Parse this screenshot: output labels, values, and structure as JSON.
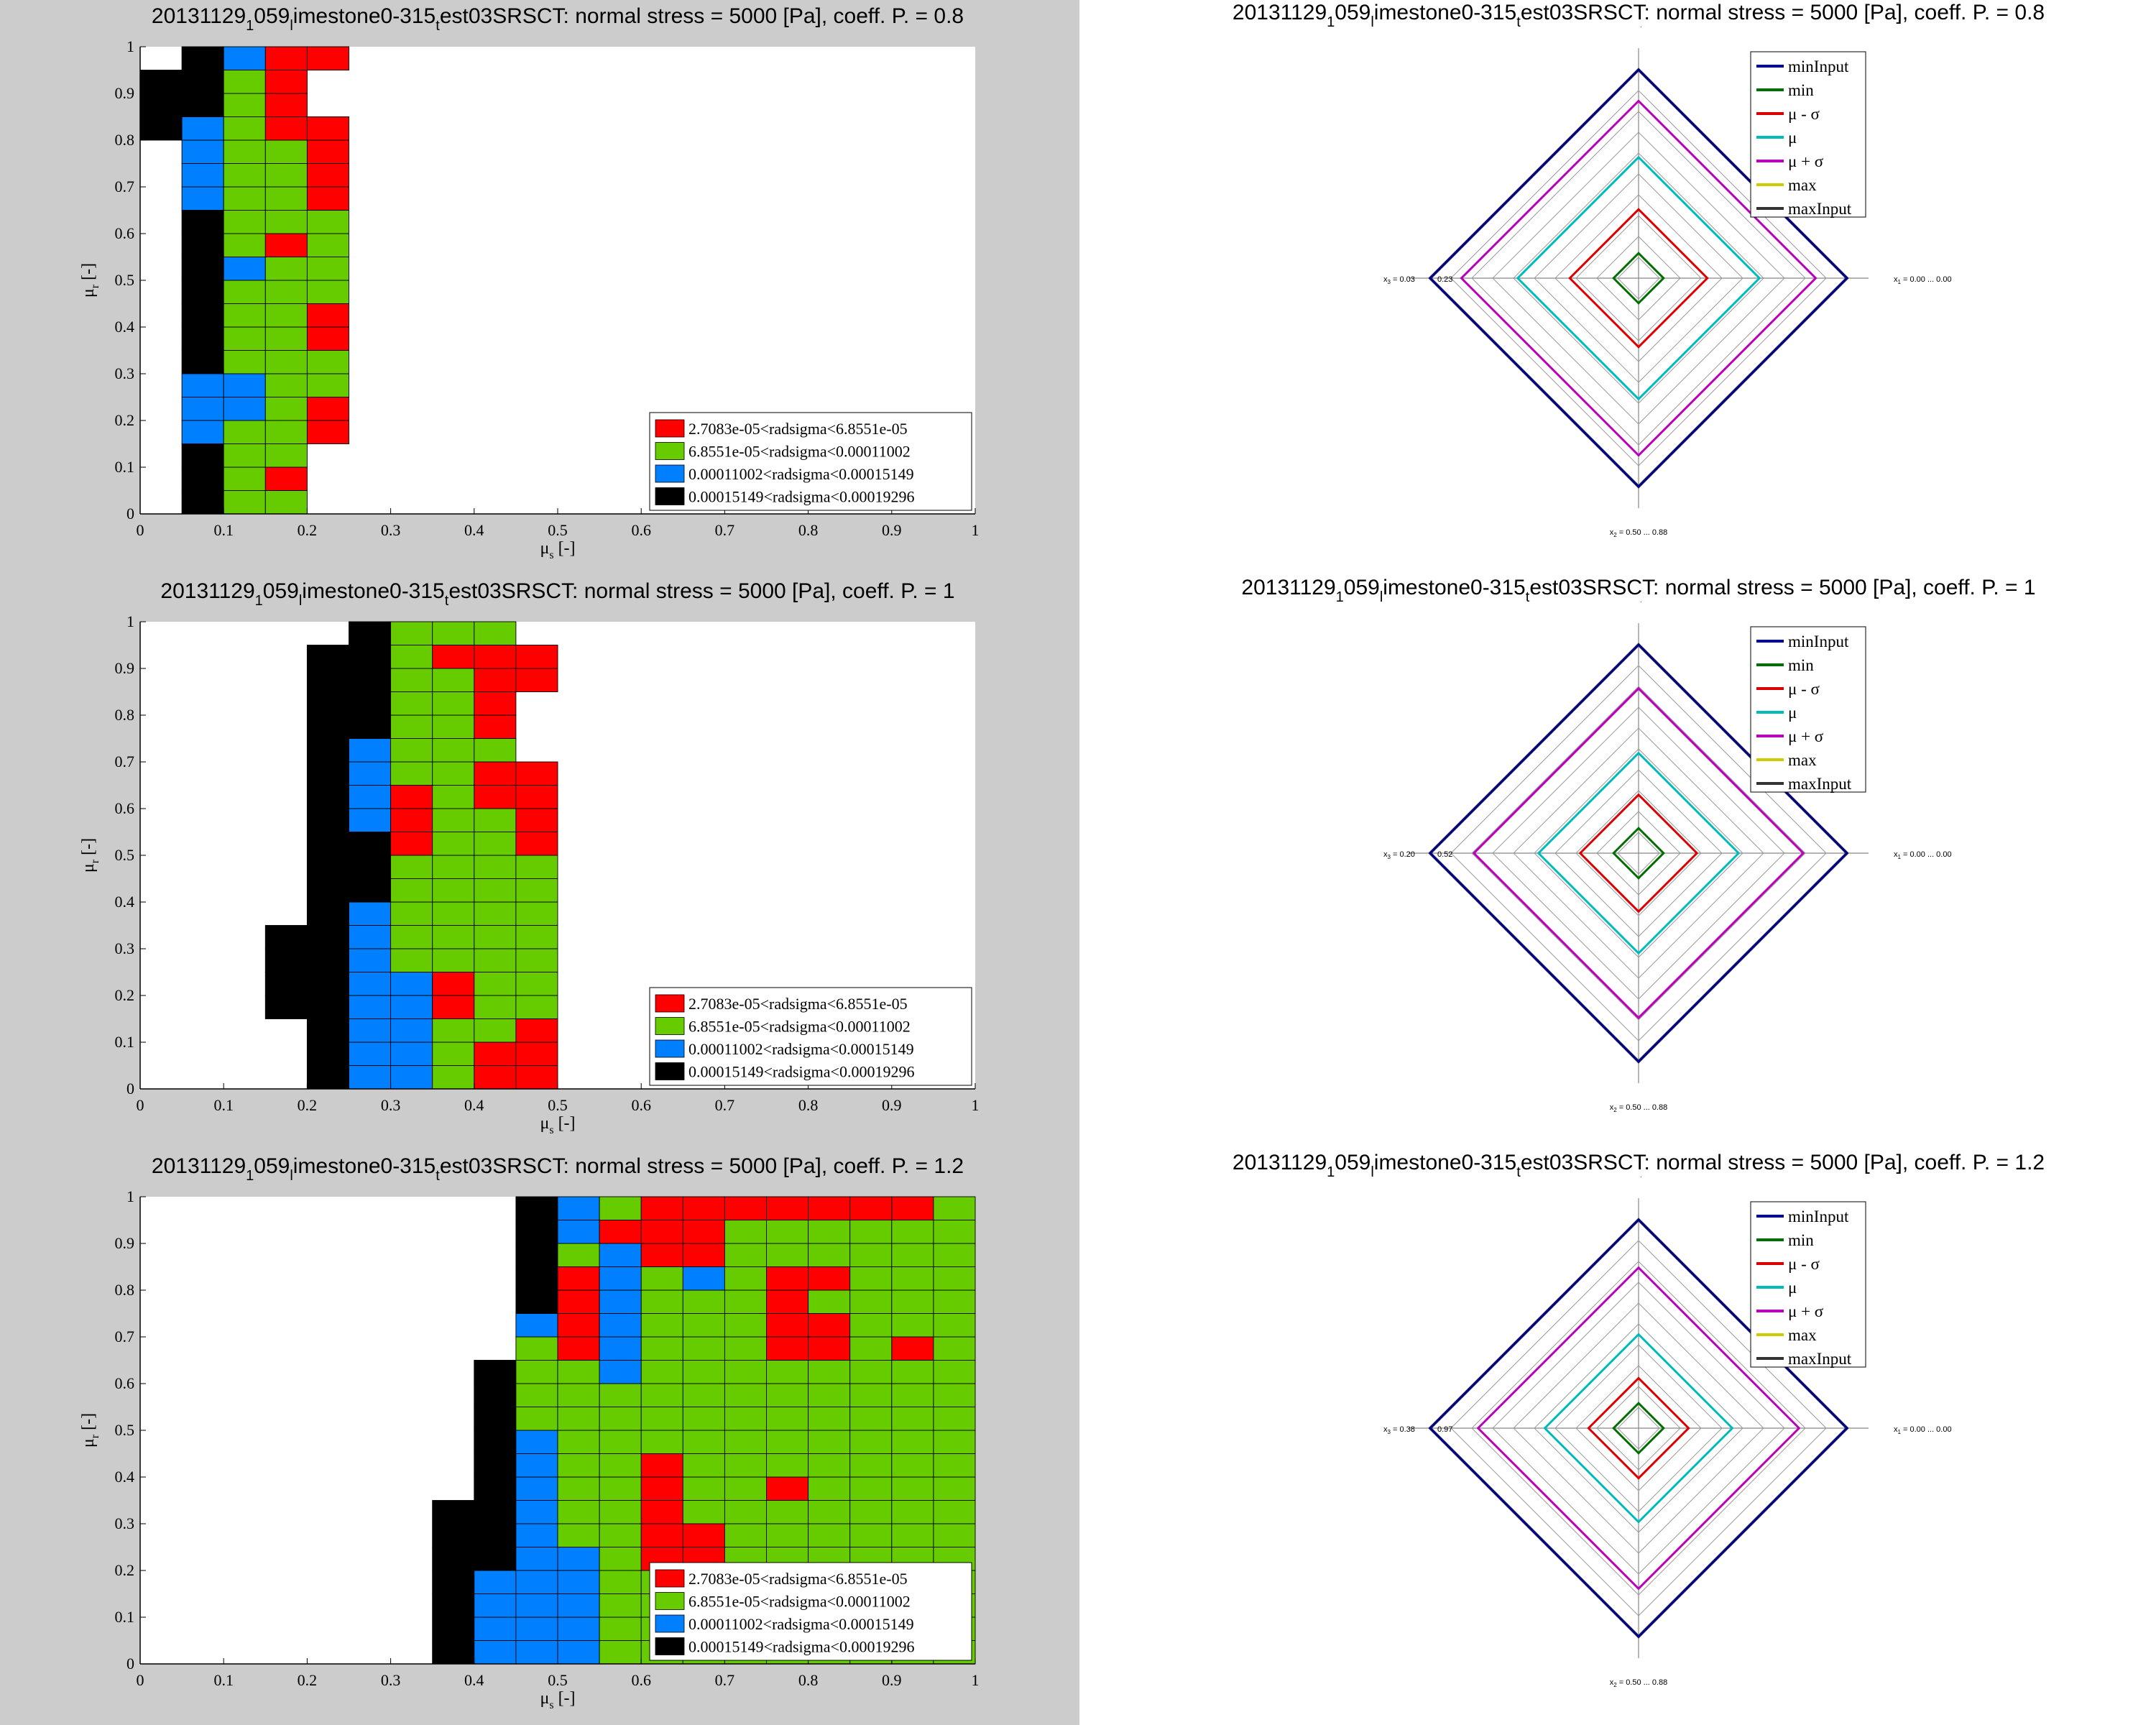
{
  "chart_data": {
    "legend_entries": [
      {
        "label": "2.7083e-05<radsigma<6.8551e-05",
        "color": "#ff0000"
      },
      {
        "label": "6.8551e-05<radsigma<0.00011002",
        "color": "#66cc00"
      },
      {
        "label": "0.00011002<radsigma<0.00015149",
        "color": "#0080ff"
      },
      {
        "label": "0.00015149<radsigma<0.00019296",
        "color": "#000000"
      }
    ],
    "heatmap_common": {
      "type": "heatmap",
      "xlabel": "μ",
      "xlabel_sub": "s",
      "xlabel_suffix": " [-]",
      "ylabel": "μ",
      "ylabel_sub": "r",
      "ylabel_suffix": " [-]",
      "xlim": [
        0,
        1
      ],
      "ylim": [
        0,
        1
      ],
      "cell_width": 0.05,
      "cell_height": 0.05,
      "x_ticks": [
        "0",
        "0.1",
        "0.2",
        "0.3",
        "0.4",
        "0.5",
        "0.6",
        "0.7",
        "0.8",
        "0.9",
        "1"
      ],
      "y_ticks": [
        "0",
        "0.1",
        "0.2",
        "0.3",
        "0.4",
        "0.5",
        "0.6",
        "0.7",
        "0.8",
        "0.9",
        "1"
      ],
      "legend_position": "bottom-right"
    },
    "heatmaps": [
      {
        "title_parts": [
          "20131129",
          "1",
          "059",
          "l",
          "imestone0-315",
          "t",
          "est03SRSCT: normal stress = 5000 [Pa], coeff. P. = 0.8"
        ],
        "columns": [
          {
            "x0": 0.0,
            "y0": 0.8,
            "y1": 0.95,
            "cells": "KKK"
          },
          {
            "x0": 0.05,
            "y0": 0.0,
            "y1": 1.0,
            "cells": "KKKBBBKKKKKKKBBBBKKK"
          },
          {
            "x0": 0.1,
            "y0": 0.0,
            "y1": 1.0,
            "cells": "GGGGBBGGGGBGGGGGGGGB"
          },
          {
            "x0": 0.15,
            "y0": 0.0,
            "y1": 1.0,
            "cells": "GRGGGGGGGGGRGGGGRRRR"
          },
          {
            "x0": 0.2,
            "y0": 0.15,
            "y1": 1.0,
            "cells": "RRGGRRGGGGRRRR  R"
          }
        ]
      },
      {
        "title_parts": [
          "20131129",
          "1",
          "059",
          "l",
          "imestone0-315",
          "t",
          "est03SRSCT: normal stress = 5000 [Pa], coeff. P. = 1"
        ],
        "columns": [
          {
            "x0": 0.15,
            "y0": 0.15,
            "y1": 0.35,
            "cells": "KKKK"
          },
          {
            "x0": 0.2,
            "y0": 0.0,
            "y1": 0.95,
            "cells": "KKKKKKKKKKKKKKKKKKK"
          },
          {
            "x0": 0.25,
            "y0": 0.0,
            "y1": 1.0,
            "cells": "BBBBBBBBKKKBBBBKKKKK"
          },
          {
            "x0": 0.3,
            "y0": 0.0,
            "y1": 1.0,
            "cells": "BBBBBGGGGGRRRGGGGGGG"
          },
          {
            "x0": 0.35,
            "y0": 0.0,
            "y1": 1.0,
            "cells": "GGGRRGGGGGGGGGGGGGRG"
          },
          {
            "x0": 0.4,
            "y0": 0.0,
            "y1": 1.0,
            "cells": "RRGGGGGGGGGGRRGRRRRG"
          },
          {
            "x0": 0.45,
            "y0": 0.0,
            "y1": 1.0,
            "cells": "RRRGGGGGGGRRRR   RR"
          }
        ]
      },
      {
        "title_parts": [
          "20131129",
          "1",
          "059",
          "l",
          "imestone0-315",
          "t",
          "est03SRSCT: normal stress = 5000 [Pa], coeff. P. = 1.2"
        ],
        "columns": [
          {
            "x0": 0.35,
            "y0": 0.0,
            "y1": 0.35,
            "cells": "KKKKKKK"
          },
          {
            "x0": 0.4,
            "y0": 0.0,
            "y1": 0.65,
            "cells": "BBBBKKKKKKKKK"
          },
          {
            "x0": 0.45,
            "y0": 0.0,
            "y1": 1.0,
            "cells": "BBBBBBBBBBGGGGBKKKKK"
          },
          {
            "x0": 0.5,
            "y0": 0.0,
            "y1": 1.0,
            "cells": "BBBBBGGGGGGGGRRRRGBB"
          },
          {
            "x0": 0.55,
            "y0": 0.0,
            "y1": 1.0,
            "cells": "GGGGGGGGGGGGBBBBBBRG"
          },
          {
            "x0": 0.6,
            "y0": 0.0,
            "y1": 1.0,
            "cells": "GGGGRRRRRGGGGGGGGRRR"
          },
          {
            "x0": 0.65,
            "y0": 0.0,
            "y1": 1.0,
            "cells": "GGGGRRGGGGGGGGGGBRRR"
          },
          {
            "x0": 0.7,
            "y0": 0.0,
            "y1": 1.0,
            "cells": "GGGGGGGGGGGGGGGGGGGR"
          },
          {
            "x0": 0.75,
            "y0": 0.0,
            "y1": 1.0,
            "cells": "GGGGGGGRGGGGGRRRRGGR"
          },
          {
            "x0": 0.8,
            "y0": 0.0,
            "y1": 1.0,
            "cells": "GGGGGGGGGGGGGRRGRGGR"
          },
          {
            "x0": 0.85,
            "y0": 0.0,
            "y1": 1.0,
            "cells": "GGGGGGGGGGGGGGGGGGGR"
          },
          {
            "x0": 0.9,
            "y0": 0.0,
            "y1": 1.0,
            "cells": "GGGGGGGGGGGGGRGGGGGR"
          },
          {
            "x0": 0.95,
            "y0": 0.0,
            "y1": 1.0,
            "cells": "GGGGGGGGGGGGGGGGGGGG"
          }
        ]
      }
    ],
    "radar_common": {
      "type": "radar",
      "axes": [
        {
          "label": "x",
          "sub": "1",
          "range_text": " = 0.00 ...  0.00"
        },
        {
          "label": "x",
          "sub": "2",
          "range_text": " = 0.50 ...  0.88"
        },
        {
          "label": "x",
          "sub": "3"
        },
        {
          "label": "x",
          "sub": "4"
        }
      ],
      "legend_position": "top-right",
      "series_names": [
        "minInput",
        "min",
        "μ - σ",
        "μ",
        "μ + σ",
        "max",
        "maxInput"
      ],
      "series_colors": [
        "#00008b",
        "#007000",
        "#dd0000",
        "#00bbbb",
        "#bb00bb",
        "#cccc00",
        "#333333"
      ]
    },
    "radars": [
      {
        "title_parts": [
          "20131129",
          "1",
          "059",
          "l",
          "imestone0-315",
          "t",
          "est03SRSCT: normal stress = 5000 [Pa], coeff. P. = 0.8"
        ],
        "x3_range": [
          "= 0.03",
          "0.23"
        ],
        "series_levels": [
          1.0,
          0.12,
          0.33,
          0.58,
          0.85,
          1.0,
          1.0
        ]
      },
      {
        "title_parts": [
          "20131129",
          "1",
          "059",
          "l",
          "imestone0-315",
          "t",
          "est03SRSCT: normal stress = 5000 [Pa], coeff. P. = 1"
        ],
        "x3_range": [
          "= 0.20",
          "0.52"
        ],
        "series_levels": [
          1.0,
          0.12,
          0.28,
          0.48,
          0.79,
          1.0,
          1.0
        ]
      },
      {
        "title_parts": [
          "20131129",
          "1",
          "059",
          "l",
          "imestone0-315",
          "t",
          "est03SRSCT: normal stress = 5000 [Pa], coeff. P. = 1.2"
        ],
        "x3_range": [
          "= 0.38",
          "0.97"
        ],
        "series_levels": [
          1.0,
          0.12,
          0.24,
          0.45,
          0.77,
          1.0,
          1.0
        ]
      }
    ]
  }
}
